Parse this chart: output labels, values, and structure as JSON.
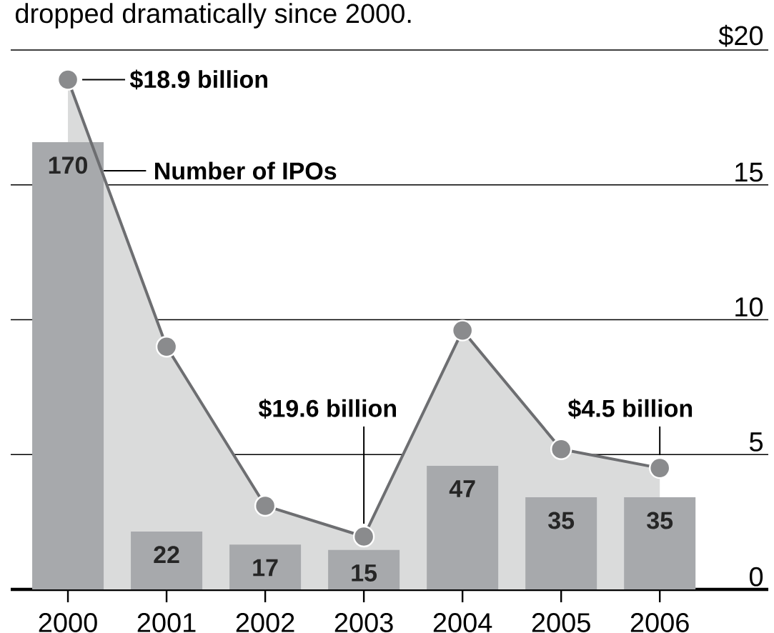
{
  "chart_data": {
    "type": "bar",
    "title": "dropped dramatically since 2000.",
    "categories": [
      "2000",
      "2001",
      "2002",
      "2003",
      "2004",
      "2005",
      "2006"
    ],
    "series": [
      {
        "name": "Number of IPOs",
        "axis": "y2",
        "color": "#a7a9ac",
        "values": [
          170,
          22,
          17,
          15,
          47,
          35,
          35
        ],
        "value_labels": [
          "170",
          "22",
          "17",
          "15",
          "47",
          "35",
          "35"
        ]
      },
      {
        "type": "area",
        "color": "#6d6e71",
        "values": [
          18.9,
          9.0,
          3.1,
          1.96,
          9.6,
          5.2,
          4.5
        ]
      }
    ],
    "ylim": [
      0,
      20
    ],
    "yticks": [
      0,
      5,
      10,
      15,
      {
        "value": 20,
        "label": "$20"
      }
    ],
    "y2lim": [
      0,
      205
    ],
    "grid": "y",
    "marker": "circle",
    "annotations": [
      {
        "text": "**$18.9 billion**",
        "x": "2000",
        "y": 18.9
      },
      "**$19.6 billion**",
      {
        "text": "**$4.5 billion**",
        "x": "2006",
        "y": 4.5
      }
    ]
  }
}
